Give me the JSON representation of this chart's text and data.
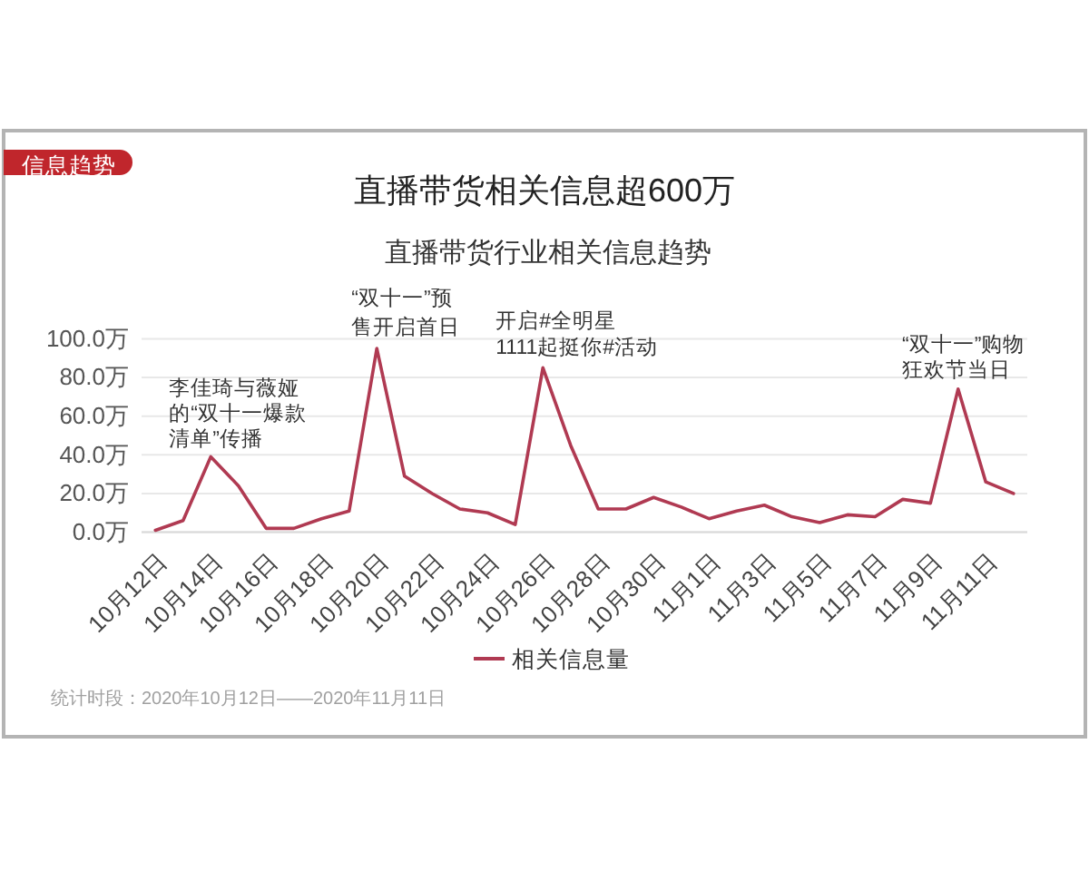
{
  "chart_data": {
    "type": "line",
    "title": "直播带货相关信息超600万",
    "subtitle": "直播带货行业相关信息趋势",
    "categories": [
      "10月12日",
      null,
      "10月14日",
      null,
      "10月16日",
      null,
      "10月18日",
      null,
      "10月20日",
      null,
      "10月22日",
      null,
      "10月24日",
      null,
      "10月26日",
      null,
      "10月28日",
      null,
      "10月30日",
      null,
      "11月1日",
      null,
      "11月3日",
      null,
      "11月5日",
      null,
      "11月7日",
      null,
      "11月9日",
      null,
      "11月11日",
      null
    ],
    "series": [
      {
        "name": "相关信息量",
        "color": "#b03a52",
        "values": [
          1,
          6,
          39,
          24,
          2,
          2,
          7,
          11,
          95,
          29,
          20,
          12,
          10,
          4,
          85,
          45,
          12,
          12,
          18,
          13,
          7,
          11,
          14,
          8,
          5,
          9,
          8,
          17,
          15,
          74,
          26,
          20
        ]
      }
    ],
    "ylim": [
      0,
      100
    ],
    "yticks": [
      {
        "value": 0,
        "label": "0.0万"
      },
      {
        "value": 20,
        "label": "20.0万"
      },
      {
        "value": 40,
        "label": "40.0万"
      },
      {
        "value": 60,
        "label": "60.0万"
      },
      {
        "value": 80,
        "label": "80.0万"
      },
      {
        "value": 100,
        "label": "100.0万"
      }
    ],
    "grid": "y",
    "legend": "bottom",
    "annotations": [
      "信息趋势",
      {
        "text": "李佳琦与薇娅的“双十一爆款清单”传播",
        "x": "10月14日",
        "y": 39
      },
      {
        "text": "“双十一”预售开启首日",
        "x": "10月20日",
        "y": 95
      },
      {
        "text": "开启#全明星1111起挺你#活动",
        "x": "10月26日",
        "y": 85
      },
      {
        "text": "“双十一”购物狂欢节当日",
        "y": 74
      },
      "统计时段：2020年10月12日——2020年11月11日"
    ]
  }
}
